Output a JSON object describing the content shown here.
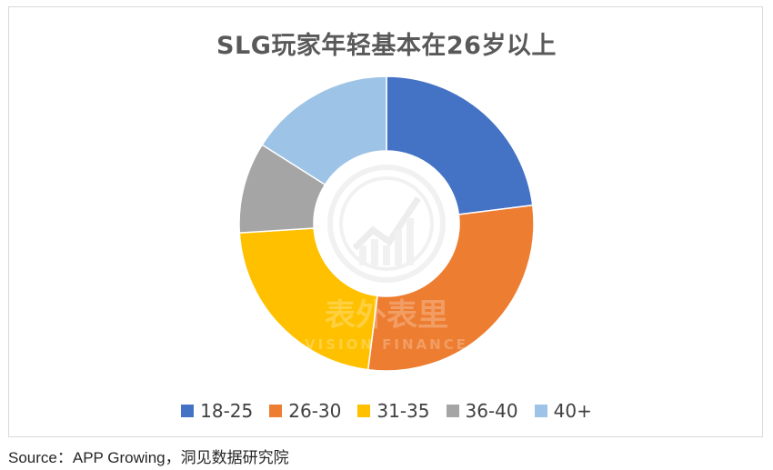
{
  "chart_data": {
    "type": "pie",
    "title": "SLG玩家年轻基本在26岁以上",
    "donut": true,
    "categories": [
      "18-25",
      "26-30",
      "31-35",
      "36-40",
      "40+"
    ],
    "values": [
      23,
      29,
      22,
      10,
      16
    ],
    "colors": [
      "#4472c4",
      "#ed7d31",
      "#ffc000",
      "#a5a5a5",
      "#9dc3e6"
    ],
    "legend_position": "bottom"
  },
  "watermark": {
    "text_cn": "表外表里",
    "text_en": "VISION FINANCE"
  },
  "source": "Source：APP Growing，洞见数据研究院"
}
